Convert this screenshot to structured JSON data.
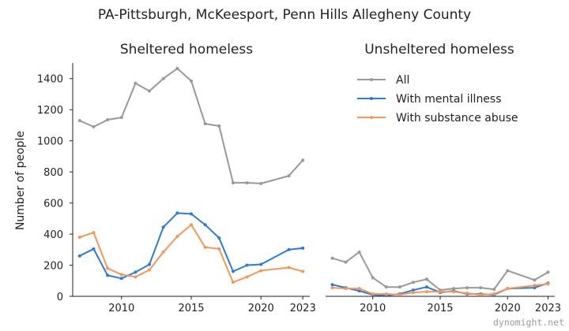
{
  "title": "PA-Pittsburgh, McKeesport, Penn Hills Allegheny County",
  "watermark": "dynomight.net",
  "chart_data": [
    {
      "type": "line",
      "title": "Sheltered homeless",
      "ylabel": "Number of people",
      "xlim": [
        2006.5,
        2023.5
      ],
      "ylim": [
        0,
        1500
      ],
      "yticks": [
        0,
        200,
        400,
        600,
        800,
        1000,
        1200,
        1400
      ],
      "xticks": [
        2010,
        2015,
        2020,
        2023
      ],
      "series": [
        {
          "name": "All",
          "color": "#999999",
          "x": [
            2007,
            2008,
            2009,
            2010,
            2011,
            2012,
            2013,
            2014,
            2015,
            2016,
            2017,
            2018,
            2019,
            2020,
            2022,
            2023
          ],
          "y": [
            1130,
            1090,
            1135,
            1150,
            1370,
            1320,
            1400,
            1465,
            1385,
            1110,
            1095,
            730,
            730,
            725,
            775,
            875
          ]
        },
        {
          "name": "With mental illness",
          "color": "#2e7bd6",
          "x": [
            2007,
            2008,
            2009,
            2010,
            2011,
            2012,
            2013,
            2014,
            2015,
            2016,
            2017,
            2018,
            2019,
            2020,
            2022,
            2023
          ],
          "y": [
            260,
            305,
            135,
            115,
            155,
            205,
            445,
            535,
            530,
            460,
            375,
            160,
            200,
            205,
            300,
            310
          ]
        },
        {
          "name": "With substance abuse",
          "color": "#f5975a",
          "x": [
            2007,
            2008,
            2009,
            2010,
            2011,
            2012,
            2013,
            2014,
            2015,
            2016,
            2017,
            2018,
            2019,
            2020,
            2022,
            2023
          ],
          "y": [
            380,
            410,
            180,
            140,
            125,
            170,
            285,
            385,
            460,
            315,
            305,
            90,
            125,
            165,
            185,
            160
          ]
        }
      ]
    },
    {
      "type": "line",
      "title": "Unsheltered homeless",
      "xlim": [
        2006.5,
        2023.5
      ],
      "ylim": [
        0,
        1500
      ],
      "xticks": [
        2010,
        2015,
        2020,
        2023
      ],
      "legend": "top-right",
      "series": [
        {
          "name": "All",
          "color": "#999999",
          "x": [
            2007,
            2008,
            2009,
            2010,
            2011,
            2012,
            2013,
            2014,
            2015,
            2016,
            2017,
            2018,
            2019,
            2020,
            2022,
            2023
          ],
          "y": [
            245,
            220,
            285,
            120,
            60,
            60,
            90,
            110,
            40,
            50,
            55,
            55,
            45,
            165,
            105,
            155
          ]
        },
        {
          "name": "With mental illness",
          "color": "#2e7bd6",
          "x": [
            2007,
            2008,
            2009,
            2010,
            2011,
            2012,
            2013,
            2014,
            2015,
            2016,
            2017,
            2018,
            2019,
            2020,
            2022,
            2023
          ],
          "y": [
            75,
            55,
            35,
            10,
            5,
            15,
            40,
            60,
            25,
            35,
            15,
            15,
            10,
            50,
            55,
            85
          ]
        },
        {
          "name": "With substance abuse",
          "color": "#f5975a",
          "x": [
            2007,
            2008,
            2009,
            2010,
            2011,
            2012,
            2013,
            2014,
            2015,
            2016,
            2017,
            2018,
            2019,
            2020,
            2022,
            2023
          ],
          "y": [
            55,
            50,
            50,
            15,
            15,
            10,
            25,
            30,
            30,
            30,
            20,
            10,
            15,
            50,
            70,
            80
          ]
        }
      ]
    }
  ]
}
